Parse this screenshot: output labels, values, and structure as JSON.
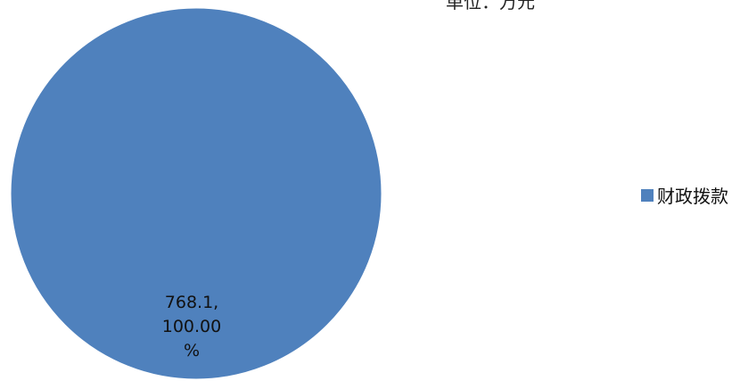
{
  "chart_data": {
    "type": "pie",
    "title": "单位：万元",
    "slices": [
      {
        "name": "财政拨款",
        "value": 768.1,
        "percent_label": "100.00%",
        "color": "#4f81bd"
      }
    ],
    "legend_position": "right"
  },
  "data_label": {
    "line1": "768.1,",
    "line2": "100.00",
    "line3": "%"
  }
}
